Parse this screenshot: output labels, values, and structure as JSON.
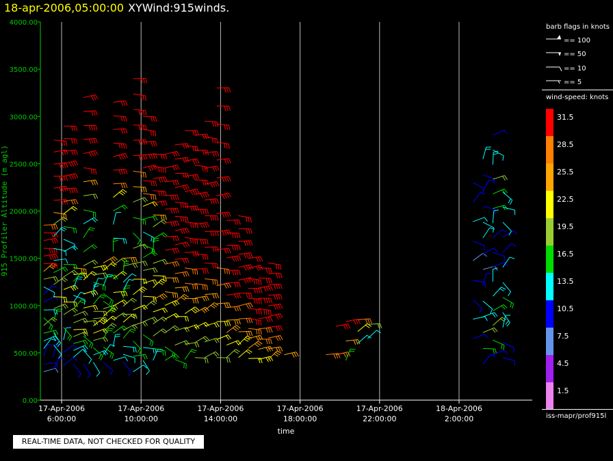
{
  "title": {
    "date": "18-apr-2006,05:00:00",
    "main": "XYWind:915winds."
  },
  "legend": {
    "barb_header": "barb flags in knots",
    "barb_items": [
      "== 100",
      "== 50",
      "== 10",
      "== 5"
    ],
    "speed_header": "wind-speed: knots",
    "speed_scale": [
      {
        "label": "31.5",
        "color": "#ff0000"
      },
      {
        "label": "28.5",
        "color": "#ff7f00"
      },
      {
        "label": "25.5",
        "color": "#ffa500"
      },
      {
        "label": "22.5",
        "color": "#ffff00"
      },
      {
        "label": "19.5",
        "color": "#9acd32"
      },
      {
        "label": "16.5",
        "color": "#00dd00"
      },
      {
        "label": "13.5",
        "color": "#00ffff"
      },
      {
        "label": "10.5",
        "color": "#0000ff"
      },
      {
        "label": "7.5",
        "color": "#6495ed"
      },
      {
        "label": "4.5",
        "color": "#a020f0"
      },
      {
        "label": "1.5",
        "color": "#ee82ee"
      }
    ],
    "footer": "iss-mapr/prof915l"
  },
  "qc_notice": "REAL-TIME DATA, NOT CHECKED FOR QUALITY",
  "chart_data": {
    "type": "scatter",
    "ylabel": "915 Profiler Altitude (m agl)",
    "xlabel": "time",
    "ylim": [
      0,
      4000
    ],
    "y_ticks": [
      "0.00",
      "500.00",
      "1000.00",
      "1500.00",
      "2000.00",
      "2500.00",
      "3000.00",
      "3500.00",
      "4000.00"
    ],
    "x_ticks": [
      {
        "date": "17-Apr-2006",
        "time": "6:00:00",
        "hour": 6
      },
      {
        "date": "17-Apr-2006",
        "time": "10:00:00",
        "hour": 10
      },
      {
        "date": "17-Apr-2006",
        "time": "14:00:00",
        "hour": 14
      },
      {
        "date": "17-Apr-2006",
        "time": "18:00:00",
        "hour": 18
      },
      {
        "date": "17-Apr-2006",
        "time": "22:00:00",
        "hour": 22
      },
      {
        "date": "18-Apr-2006",
        "time": "2:00:00",
        "hour": 26
      }
    ],
    "grid": "vertical",
    "columns": [
      {
        "hour": 5.1,
        "bottom": 300,
        "top": 1850,
        "speeds": [
          8,
          9,
          10,
          12,
          14,
          17,
          20,
          17,
          14,
          11,
          10,
          12,
          18,
          24,
          30,
          33,
          32,
          31,
          30,
          29
        ]
      },
      {
        "hour": 5.6,
        "bottom": 330,
        "top": 2750,
        "speeds": [
          10,
          11,
          12,
          14,
          16,
          19,
          21,
          18,
          15,
          13,
          12,
          14,
          20,
          26,
          31,
          32,
          33,
          32,
          31,
          31
        ]
      },
      {
        "hour": 6.1,
        "bottom": 370,
        "top": 2900,
        "speeds": [
          9,
          11,
          13,
          15,
          18,
          21,
          23,
          20,
          16,
          14,
          12,
          15,
          22,
          28,
          32,
          33,
          32,
          31,
          31,
          30
        ]
      },
      {
        "hour": 6.6,
        "bottom": 380,
        "top": 1400,
        "speeds": [
          10,
          12,
          14,
          16,
          19,
          22,
          20,
          18,
          15,
          13,
          12,
          14,
          17,
          21,
          26
        ]
      },
      {
        "hour": 7.1,
        "bottom": 380,
        "top": 3200,
        "speeds": [
          11,
          13,
          15,
          18,
          21,
          23,
          22,
          19,
          17,
          15,
          14,
          16,
          20,
          25,
          30,
          32,
          33,
          32,
          31,
          31
        ]
      },
      {
        "hour": 7.6,
        "bottom": 400,
        "top": 1400,
        "speeds": [
          12,
          14,
          16,
          18,
          21,
          23,
          20,
          18,
          16,
          14,
          13,
          15,
          19,
          23
        ]
      },
      {
        "hour": 8.1,
        "bottom": 400,
        "top": 1450,
        "speeds": [
          11,
          13,
          15,
          17,
          20,
          22,
          21,
          19,
          17,
          15,
          14,
          16,
          21,
          24
        ]
      },
      {
        "hour": 8.6,
        "bottom": 420,
        "top": 3150,
        "speeds": [
          12,
          14,
          16,
          19,
          21,
          23,
          21,
          18,
          16,
          14,
          13,
          17,
          23,
          28,
          32,
          33,
          32,
          31,
          31,
          30
        ]
      },
      {
        "hour": 9.1,
        "bottom": 400,
        "top": 1500,
        "speeds": [
          10,
          12,
          14,
          17,
          19,
          22,
          20,
          18,
          15,
          13,
          12,
          15,
          20,
          25
        ]
      },
      {
        "hour": 9.6,
        "bottom": 300,
        "top": 3400,
        "speeds": [
          13,
          15,
          17,
          19,
          21,
          23,
          22,
          20,
          18,
          16,
          15,
          18,
          24,
          29,
          32,
          33,
          33,
          32,
          31,
          31
        ]
      },
      {
        "hour": 10.1,
        "bottom": 420,
        "top": 3000,
        "speeds": [
          12,
          14,
          16,
          18,
          20,
          22,
          21,
          19,
          17,
          15,
          14,
          17,
          22,
          28,
          31,
          33,
          32,
          31,
          31,
          30
        ]
      },
      {
        "hour": 10.6,
        "bottom": 420,
        "top": 2600,
        "speeds": [
          14,
          16,
          18,
          20,
          22,
          24,
          23,
          21,
          19,
          17,
          16,
          19,
          25,
          30,
          32,
          33,
          32,
          31
        ]
      },
      {
        "hour": 11.2,
        "bottom": 420,
        "top": 2600,
        "speeds": [
          15,
          17,
          19,
          21,
          23,
          25,
          26,
          28,
          30,
          31,
          32,
          33,
          32,
          31,
          31,
          30
        ]
      },
      {
        "hour": 11.7,
        "bottom": 430,
        "top": 2700,
        "speeds": [
          16,
          18,
          20,
          22,
          24,
          26,
          28,
          30,
          31,
          32,
          33,
          32,
          31,
          31,
          30,
          30
        ]
      },
      {
        "hour": 12.2,
        "bottom": 430,
        "top": 2850,
        "speeds": [
          17,
          19,
          21,
          23,
          25,
          27,
          29,
          31,
          32,
          33,
          33,
          32,
          31,
          31,
          30,
          30
        ]
      },
      {
        "hour": 12.7,
        "bottom": 450,
        "top": 2800,
        "speeds": [
          18,
          20,
          22,
          24,
          26,
          28,
          30,
          31,
          32,
          33,
          33,
          32,
          31,
          31,
          30,
          30
        ]
      },
      {
        "hour": 13.2,
        "bottom": 450,
        "top": 2950,
        "speeds": [
          18,
          20,
          22,
          24,
          26,
          28,
          30,
          31,
          32,
          33,
          33,
          32,
          31,
          31,
          30,
          30
        ]
      },
      {
        "hour": 13.8,
        "bottom": 450,
        "top": 3300,
        "speeds": [
          19,
          21,
          23,
          25,
          27,
          29,
          31,
          32,
          33,
          33,
          32,
          31,
          31,
          30,
          30,
          30
        ]
      },
      {
        "hour": 14.3,
        "bottom": 450,
        "top": 1900,
        "speeds": [
          20,
          22,
          24,
          26,
          28,
          30,
          31,
          32,
          33,
          33,
          32,
          31
        ]
      },
      {
        "hour": 14.9,
        "bottom": 450,
        "top": 1950,
        "speeds": [
          21,
          23,
          25,
          27,
          29,
          31,
          32,
          33,
          33,
          32,
          31,
          30
        ]
      },
      {
        "hour": 15.4,
        "bottom": 440,
        "top": 1500,
        "speeds": [
          22,
          24,
          26,
          28,
          30,
          31,
          32,
          33,
          32,
          31,
          30
        ]
      },
      {
        "hour": 15.9,
        "bottom": 430,
        "top": 1400,
        "speeds": [
          23,
          25,
          27,
          29,
          31,
          32,
          33,
          32,
          31,
          30
        ]
      },
      {
        "hour": 16.4,
        "bottom": 430,
        "top": 1450,
        "speeds": [
          24,
          26,
          28,
          30,
          31,
          32,
          33,
          32,
          31,
          30
        ]
      },
      {
        "hour": 17.2,
        "bottom": 480,
        "top": 520,
        "speeds": [
          26
        ]
      },
      {
        "hour": 19.3,
        "bottom": 480,
        "top": 560,
        "speeds": [
          27
        ]
      },
      {
        "hour": 19.8,
        "bottom": 480,
        "top": 780,
        "speeds": [
          28,
          30
        ]
      },
      {
        "hour": 20.3,
        "bottom": 420,
        "top": 830,
        "speeds": [
          17,
          26,
          30
        ]
      },
      {
        "hour": 20.9,
        "bottom": 600,
        "top": 850,
        "speeds": [
          13,
          22,
          27
        ]
      },
      {
        "hour": 21.4,
        "bottom": 650,
        "top": 800,
        "speeds": [
          12,
          20
        ]
      },
      {
        "hour": 26.7,
        "bottom": 650,
        "top": 2300,
        "speeds": [
          11,
          12,
          10,
          9,
          8,
          10,
          12,
          11,
          9
        ]
      },
      {
        "hour": 27.2,
        "bottom": 380,
        "top": 2550,
        "speeds": [
          10,
          15,
          18,
          14,
          12,
          9,
          8,
          11,
          13,
          12,
          10,
          9,
          11,
          14
        ]
      },
      {
        "hour": 27.7,
        "bottom": 480,
        "top": 2800,
        "speeds": [
          11,
          16,
          19,
          17,
          14,
          12,
          10,
          9,
          11,
          13,
          15,
          17,
          19,
          14,
          12,
          11
        ]
      },
      {
        "hour": 28.2,
        "bottom": 450,
        "top": 2200,
        "speeds": [
          9,
          10,
          12,
          14,
          15,
          13,
          12,
          11,
          10,
          12,
          13,
          14
        ]
      }
    ]
  }
}
